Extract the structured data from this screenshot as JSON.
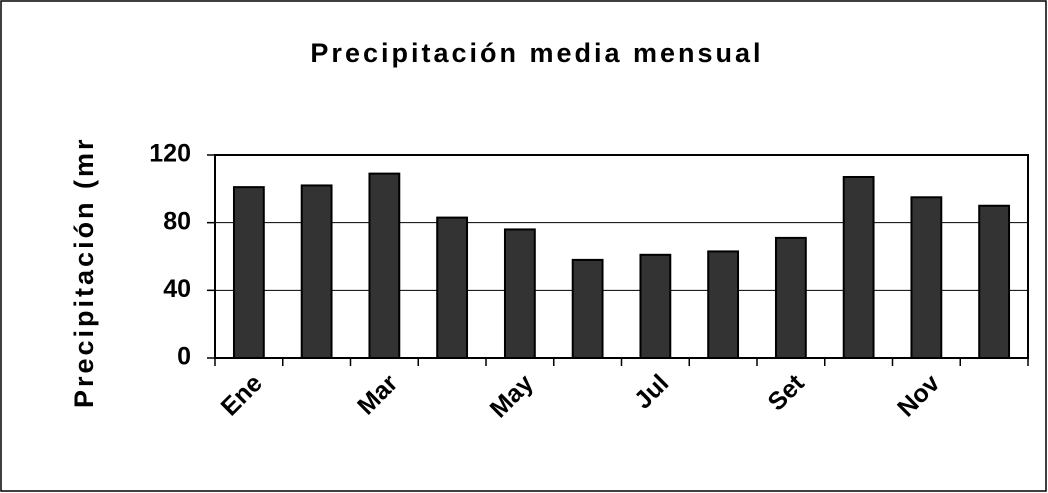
{
  "chart_data": {
    "type": "bar",
    "title": "Precipitación media mensual",
    "y_label": "Precipitación (mr",
    "categories": [
      "Ene",
      null,
      "Mar",
      null,
      "May",
      null,
      "Jul",
      null,
      "Set",
      null,
      "Nov",
      null
    ],
    "values": [
      101,
      102,
      109,
      83,
      76,
      58,
      61,
      63,
      71,
      107,
      95,
      90
    ],
    "color": "#333333",
    "ylim": [
      0,
      120
    ],
    "yticks": [
      0,
      40,
      80,
      120
    ],
    "grid": true
  }
}
